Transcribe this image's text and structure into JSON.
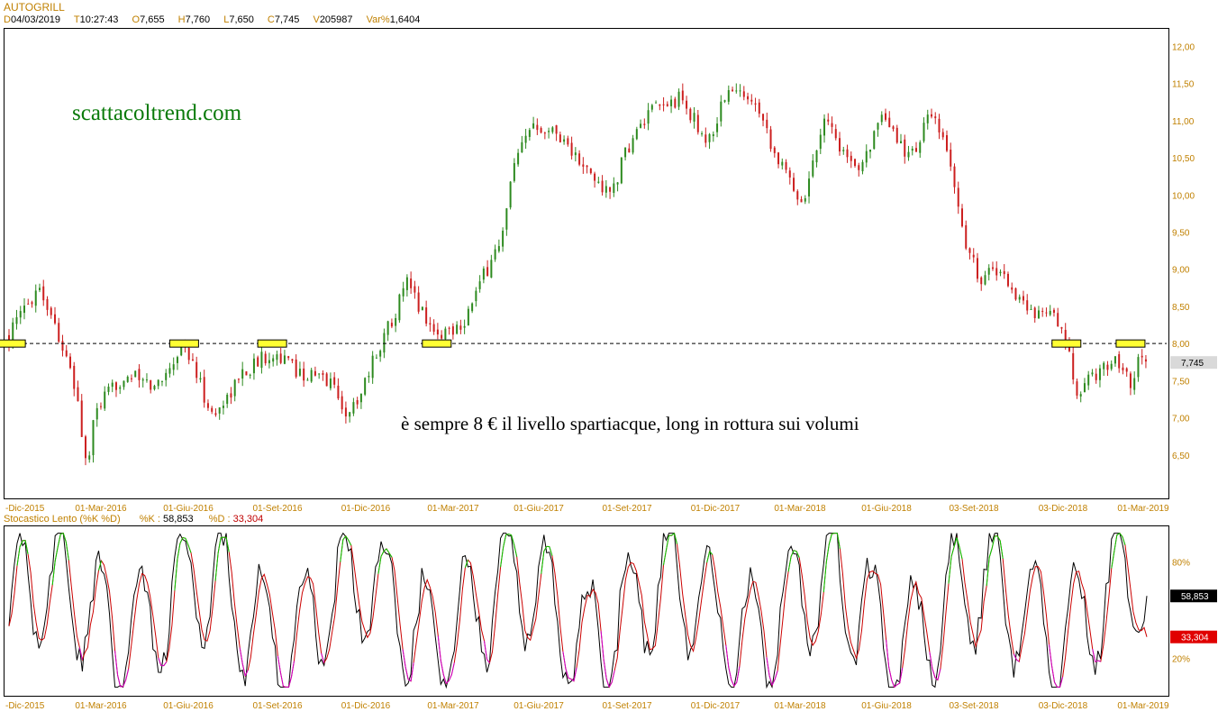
{
  "instrument": {
    "title": "AUTOGRILL"
  },
  "info_bar": [
    {
      "label": "D",
      "value": "04/03/2019"
    },
    {
      "label": "T",
      "value": "10:27:43"
    },
    {
      "label": "O",
      "value": "7,655"
    },
    {
      "label": "H",
      "value": "7,760"
    },
    {
      "label": "L",
      "value": "7,650"
    },
    {
      "label": "C",
      "value": "7,745"
    },
    {
      "label": "V",
      "value": "205987"
    },
    {
      "label": "Var%",
      "value": "1,6404"
    }
  ],
  "watermark": "scattacoltrend.com",
  "annotation": "è sempre 8 € il livello spartiacque, long in rottura sui volumi",
  "colors": {
    "up": "#2d8a1f",
    "down": "#cc1f1f",
    "axis_text": "#c08000",
    "k_line": "#000000",
    "d_line": "#cc0000",
    "overbought": "#00cc00",
    "oversold": "#cc00cc",
    "highlight": "#ffff33"
  },
  "chart_data": [
    {
      "type": "candlestick",
      "title": "AUTOGRILL",
      "ylim": [
        6.0,
        12.2
      ],
      "y_ticks": [
        "12,00",
        "11,50",
        "11,00",
        "10,50",
        "10,00",
        "9,50",
        "9,00",
        "8,50",
        "8,00",
        "7,50",
        "7,00",
        "6,50"
      ],
      "y_tick_values": [
        12.0,
        11.5,
        11.0,
        10.5,
        10.0,
        9.5,
        9.0,
        8.5,
        8.0,
        7.5,
        7.0,
        6.5
      ],
      "x_tick_labels": [
        "-Dic-2015",
        "01-Mar-2016",
        "01-Giu-2016",
        "01-Set-2016",
        "01-Dic-2016",
        "01-Mar-2017",
        "01-Giu-2017",
        "01-Set-2017",
        "01-Dic-2017",
        "01-Mar-2018",
        "01-Giu-2018",
        "03-Set-2018",
        "03-Dic-2018",
        "01-Mar-2019"
      ],
      "x_start": "2015-12-01",
      "x_end": "2019-03-04",
      "price_path": [
        [
          "2015-12-01",
          8.1
        ],
        [
          "2016-01-01",
          8.8
        ],
        [
          "2016-01-20",
          8.2
        ],
        [
          "2016-02-10",
          7.3
        ],
        [
          "2016-02-20",
          6.3
        ],
        [
          "2016-03-01",
          7.1
        ],
        [
          "2016-04-01",
          7.6
        ],
        [
          "2016-05-01",
          7.4
        ],
        [
          "2016-06-01",
          8.0
        ],
        [
          "2016-07-01",
          7.0
        ],
        [
          "2016-08-01",
          7.6
        ],
        [
          "2016-09-01",
          7.9
        ],
        [
          "2016-10-01",
          7.6
        ],
        [
          "2016-11-01",
          7.5
        ],
        [
          "2016-11-20",
          7.0
        ],
        [
          "2016-12-20",
          7.9
        ],
        [
          "2017-01-20",
          8.8
        ],
        [
          "2017-02-20",
          8.1
        ],
        [
          "2017-03-20",
          8.3
        ],
        [
          "2017-04-10",
          8.9
        ],
        [
          "2017-05-01",
          9.5
        ],
        [
          "2017-05-10",
          10.3
        ],
        [
          "2017-06-01",
          11.0
        ],
        [
          "2017-07-01",
          10.8
        ],
        [
          "2017-07-20",
          10.4
        ],
        [
          "2017-08-20",
          10.0
        ],
        [
          "2017-09-10",
          10.7
        ],
        [
          "2017-10-01",
          11.1
        ],
        [
          "2017-11-01",
          11.3
        ],
        [
          "2017-12-01",
          10.7
        ],
        [
          "2017-12-20",
          11.4
        ],
        [
          "2018-01-20",
          11.3
        ],
        [
          "2018-02-10",
          10.5
        ],
        [
          "2018-03-10",
          9.9
        ],
        [
          "2018-04-01",
          11.1
        ],
        [
          "2018-05-01",
          10.3
        ],
        [
          "2018-06-01",
          11.0
        ],
        [
          "2018-07-01",
          10.5
        ],
        [
          "2018-07-20",
          11.1
        ],
        [
          "2018-08-10",
          10.5
        ],
        [
          "2018-08-25",
          9.4
        ],
        [
          "2018-09-10",
          8.9
        ],
        [
          "2018-10-01",
          9.0
        ],
        [
          "2018-11-01",
          8.4
        ],
        [
          "2018-11-20",
          8.5
        ],
        [
          "2018-12-10",
          8.0
        ],
        [
          "2018-12-20",
          7.3
        ],
        [
          "2019-01-10",
          7.6
        ],
        [
          "2019-02-01",
          7.8
        ],
        [
          "2019-02-15",
          7.5
        ],
        [
          "2019-02-25",
          7.8
        ],
        [
          "2019-03-04",
          7.745
        ]
      ],
      "support_level": 8.0,
      "highlight_dates": [
        "2015-12-03",
        "2016-06-01",
        "2016-09-01",
        "2017-02-20",
        "2018-12-10",
        "2019-02-15"
      ],
      "last_price_label": "7,745"
    },
    {
      "type": "line",
      "title": "Stocastico Lento (%K %D)",
      "ylim": [
        0,
        100
      ],
      "y_ticks": [
        "80%",
        "20%"
      ],
      "y_tick_values": [
        80,
        20
      ],
      "series": [
        {
          "name": "%K",
          "last_label": "58,853",
          "last": 58.853
        },
        {
          "name": "%D",
          "last_label": "33,304",
          "last": 33.304
        }
      ],
      "x_tick_labels": [
        "-Dic-2015",
        "01-Mar-2016",
        "01-Giu-2016",
        "01-Set-2016",
        "01-Dic-2016",
        "01-Mar-2017",
        "01-Giu-2017",
        "01-Set-2017",
        "01-Dic-2017",
        "01-Mar-2018",
        "01-Giu-2018",
        "03-Set-2018",
        "03-Dic-2018",
        "01-Mar-2019"
      ]
    }
  ],
  "stoch_header": {
    "title": "Stocastico Lento (%K %D)",
    "k_label": "%K :",
    "k_value": "58,853",
    "d_label": "%D :",
    "d_value": "33,304"
  }
}
